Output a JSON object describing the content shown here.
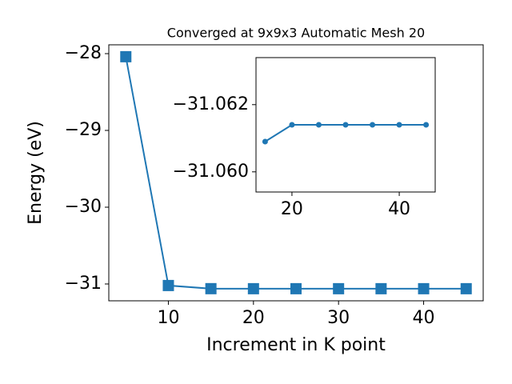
{
  "chart_data": [
    {
      "type": "line",
      "title": "Converged at 9x9x3 Automatic Mesh 20",
      "x_label": "Increment in K point",
      "y_label": "Energy (eV)",
      "x": [
        5,
        10,
        15,
        20,
        25,
        30,
        35,
        40,
        45
      ],
      "series": [
        {
          "color": "#1f77b4",
          "marker": "square",
          "values": [
            -28.04,
            -31.02,
            -31.0609,
            -31.0614,
            -31.0614,
            -31.0614,
            -31.0614,
            -31.0614,
            -31.0614
          ]
        }
      ],
      "xlim": [
        3,
        47
      ],
      "ylim": [
        -31.219,
        -27.885
      ],
      "xticks": [
        10,
        20,
        30,
        40
      ],
      "yticks": [
        {
          "value": -31,
          "label": "−31"
        },
        {
          "value": -30,
          "label": "−30"
        },
        {
          "value": -29,
          "label": "−29"
        },
        {
          "value": -28,
          "label": "−28"
        }
      ]
    },
    {
      "type": "line",
      "x": [
        15,
        20,
        25,
        30,
        35,
        40,
        45
      ],
      "series": [
        {
          "color": "#1f77b4",
          "marker": "circle",
          "values": [
            -31.0609,
            -31.0614,
            -31.0614,
            -31.0614,
            -31.0614,
            -31.0614,
            -31.0614
          ]
        }
      ],
      "xlim": [
        13.3,
        46.7
      ],
      "ylim": [
        -31.0594,
        -31.0634
      ],
      "xticks": [
        20,
        40
      ],
      "yticks": [
        {
          "value": -31.06,
          "label": "−31.060"
        },
        {
          "value": -31.062,
          "label": "−31.062"
        }
      ]
    }
  ]
}
